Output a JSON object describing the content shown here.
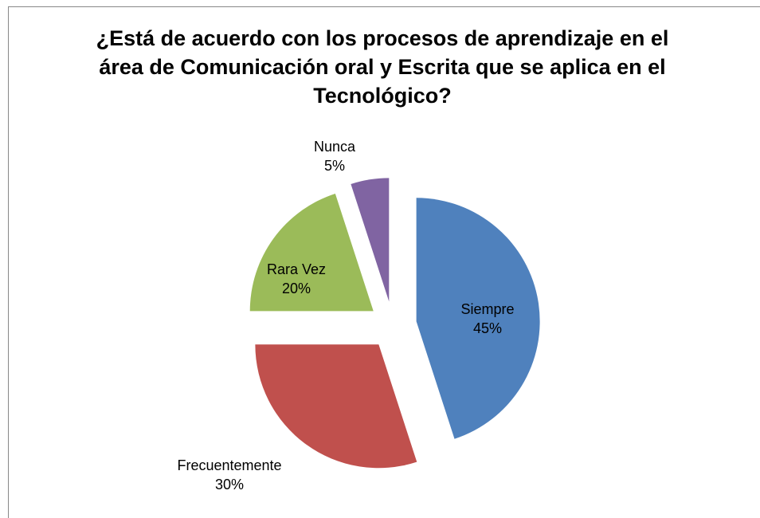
{
  "chart_data": {
    "type": "pie",
    "title": "¿Está de acuerdo con los procesos de aprendizaje en el área de Comunicación oral y  Escrita que se aplica en el Tecnológico?",
    "categories": [
      "Siempre",
      "Frecuentemente",
      "Rara Vez",
      "Nunca"
    ],
    "values": [
      45,
      30,
      20,
      5
    ],
    "value_labels": [
      "45%",
      "30%",
      "20%",
      "5%"
    ],
    "colors": [
      "#4f81bd",
      "#c0504d",
      "#9bbb59",
      "#8064a2"
    ]
  }
}
